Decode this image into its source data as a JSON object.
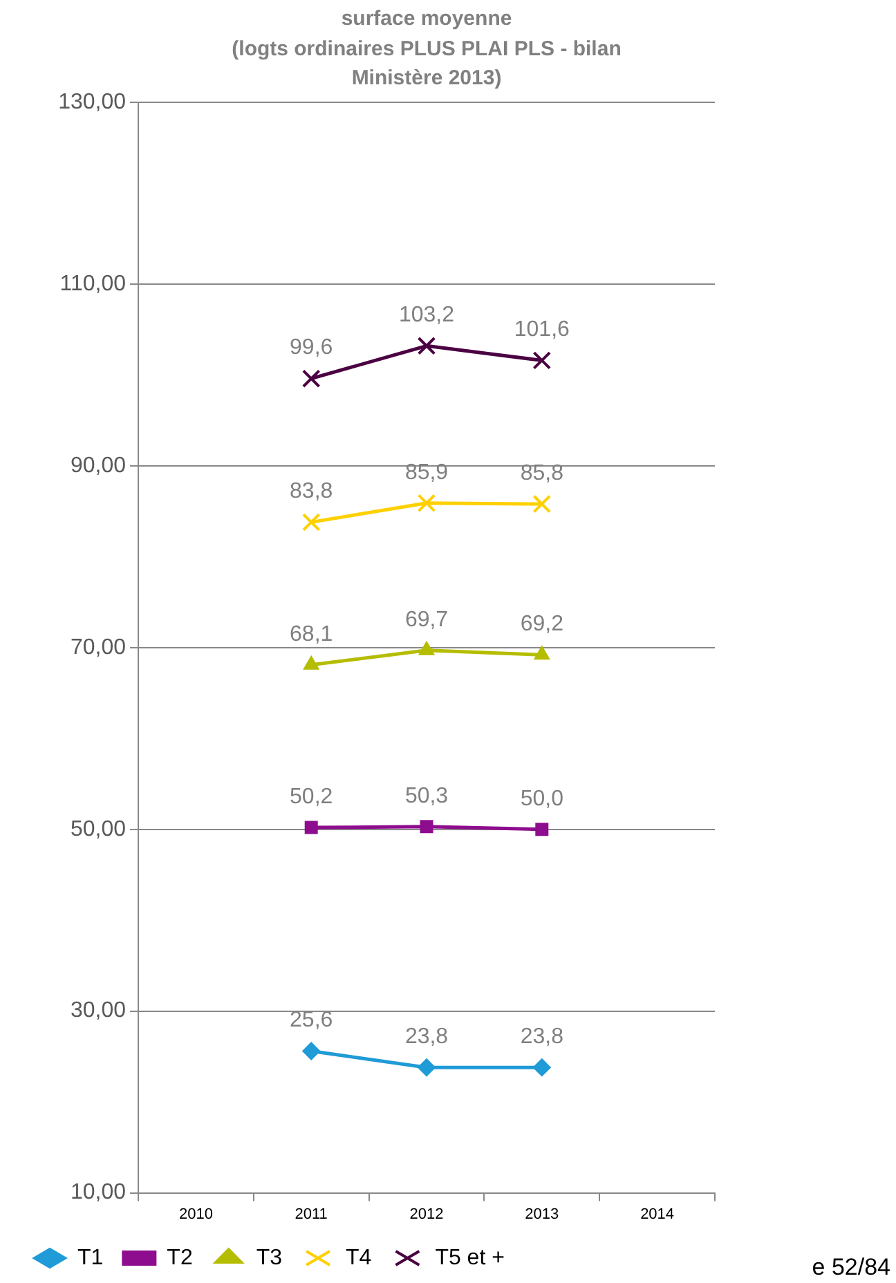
{
  "chart_data": {
    "type": "line",
    "title": "surface moyenne",
    "subtitle": "(logts ordinaires PLUS PLAI PLS - bilan Ministère 2013)",
    "categories": [
      "2010",
      "2011",
      "2012",
      "2013",
      "2014"
    ],
    "series": [
      {
        "name": "T1",
        "color": "#1f9bd7",
        "marker": "diamond",
        "values": [
          null,
          25.6,
          23.8,
          23.8,
          null
        ],
        "value_labels": [
          null,
          "25,6",
          "23,8",
          "23,8",
          null
        ]
      },
      {
        "name": "T2",
        "color": "#8e0c8e",
        "marker": "square",
        "values": [
          null,
          50.2,
          50.3,
          50.0,
          null
        ],
        "value_labels": [
          null,
          "50,2",
          "50,3",
          "50,0",
          null
        ]
      },
      {
        "name": "T3",
        "color": "#b5bd00",
        "marker": "triangle",
        "values": [
          null,
          68.1,
          69.7,
          69.2,
          null
        ],
        "value_labels": [
          null,
          "68,1",
          "69,7",
          "69,2",
          null
        ]
      },
      {
        "name": "T4",
        "color": "#ffd000",
        "marker": "cross",
        "values": [
          null,
          83.8,
          85.9,
          85.8,
          null
        ],
        "value_labels": [
          null,
          "83,8",
          "85,9",
          "85,8",
          null
        ]
      },
      {
        "name": "T5 et +",
        "color": "#4b0042",
        "marker": "cross",
        "values": [
          null,
          99.6,
          103.2,
          101.6,
          null
        ],
        "value_labels": [
          null,
          "99,6",
          "103,2",
          "101,6",
          null
        ]
      }
    ],
    "ylim": [
      10,
      130
    ],
    "yticks": [
      {
        "value": 10,
        "label": "10,00"
      },
      {
        "value": 30,
        "label": "30,00"
      },
      {
        "value": 50,
        "label": "50,00"
      },
      {
        "value": 70,
        "label": "70,00"
      },
      {
        "value": 90,
        "label": "90,00"
      },
      {
        "value": 110,
        "label": "110,00"
      },
      {
        "value": 130,
        "label": "130,00"
      }
    ],
    "grid": "y",
    "legend": "bottom",
    "line_style": "solid",
    "annotations": [
      "e 52/84"
    ]
  }
}
